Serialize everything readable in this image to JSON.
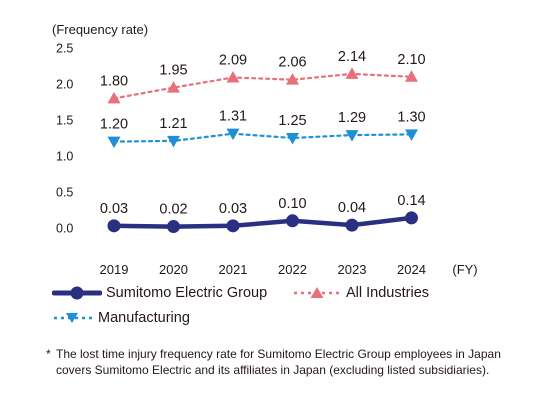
{
  "chart_data": {
    "type": "line",
    "ylabel": "(Frequency rate)",
    "x_unit": "(FY)",
    "categories": [
      "2019",
      "2020",
      "2021",
      "2022",
      "2023",
      "2024"
    ],
    "ylim": [
      0.0,
      2.5
    ],
    "yticks": [
      "2.5",
      "2.0",
      "1.5",
      "1.0",
      "0.5",
      "0.0"
    ],
    "grid": false,
    "legend_position": "bottom",
    "series": [
      {
        "name": "Sumitomo Electric Group",
        "values": [
          0.03,
          0.02,
          0.03,
          0.1,
          0.04,
          0.14
        ],
        "labels": [
          "0.03",
          "0.02",
          "0.03",
          "0.10",
          "0.04",
          "0.14"
        ],
        "color": "#2a2f82",
        "marker": "circle",
        "line_style": "solid"
      },
      {
        "name": "All Industries",
        "values": [
          1.8,
          1.95,
          2.09,
          2.06,
          2.14,
          2.1
        ],
        "labels": [
          "1.80",
          "1.95",
          "2.09",
          "2.06",
          "2.14",
          "2.10"
        ],
        "color": "#e8707a",
        "marker": "triangle-up",
        "line_style": "dotted"
      },
      {
        "name": "Manufacturing",
        "values": [
          1.2,
          1.21,
          1.31,
          1.25,
          1.29,
          1.3
        ],
        "labels": [
          "1.20",
          "1.21",
          "1.31",
          "1.25",
          "1.29",
          "1.30"
        ],
        "color": "#1f8fd6",
        "marker": "triangle-down",
        "line_style": "dotted"
      }
    ]
  },
  "legend": {
    "group_label": "Sumitomo Electric Group",
    "industries_label": "All Industries",
    "manufacturing_label": "Manufacturing"
  },
  "footnote": {
    "mark": "*",
    "text": "The lost time injury frequency rate for Sumitomo Electric Group employees in Japan covers Sumitomo Electric and its affiliates in Japan (excluding listed subsidiaries)."
  }
}
